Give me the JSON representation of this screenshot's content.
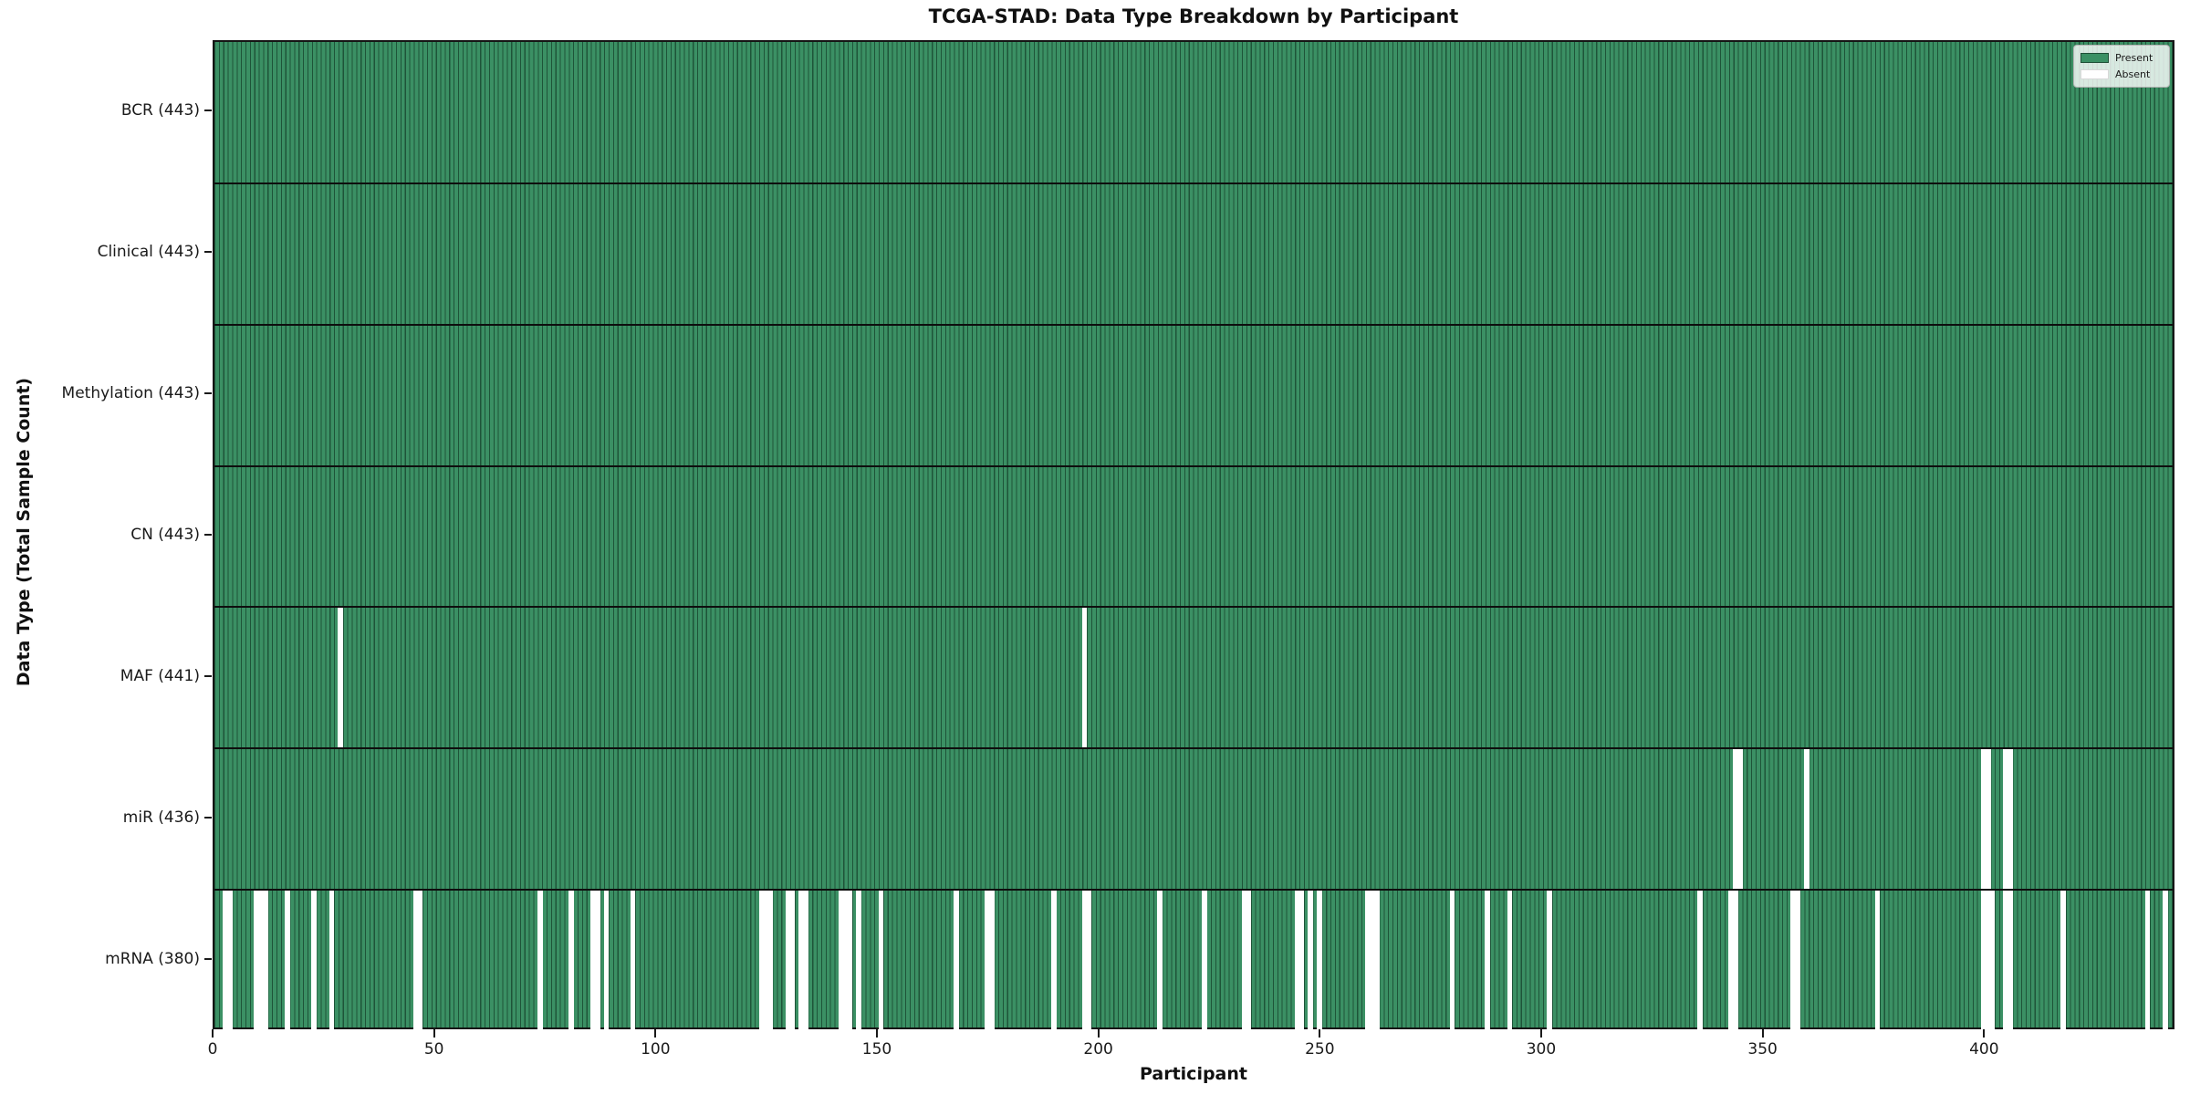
{
  "chart_data": {
    "type": "heatmap",
    "title": "TCGA-STAD: Data Type Breakdown by Participant",
    "xlabel": "Participant",
    "ylabel": "Data Type (Total Sample Count)",
    "n_participants": 443,
    "x_ticks": [
      0,
      50,
      100,
      150,
      200,
      250,
      300,
      350,
      400
    ],
    "xlim": [
      0,
      443
    ],
    "grid": false,
    "legend_position": "upper right",
    "legend": {
      "items": [
        {
          "label": "Present",
          "color": "#3b9064"
        },
        {
          "label": "Absent",
          "color": "#ffffff"
        }
      ]
    },
    "colors": {
      "present": "#3b9064",
      "bar_edge": "#123b27",
      "absent": "#ffffff",
      "spine": "#151515"
    },
    "rows": [
      {
        "label": "BCR (443)",
        "data_type": "BCR",
        "total": 443,
        "absent": []
      },
      {
        "label": "Clinical (443)",
        "data_type": "Clinical",
        "total": 443,
        "absent": []
      },
      {
        "label": "Methylation (443)",
        "data_type": "Methylation",
        "total": 443,
        "absent": []
      },
      {
        "label": "CN (443)",
        "data_type": "CN",
        "total": 443,
        "absent": []
      },
      {
        "label": "MAF (441)",
        "data_type": "MAF",
        "total": 441,
        "absent": [
          28,
          196
        ]
      },
      {
        "label": "miR (436)",
        "data_type": "miR",
        "total": 436,
        "absent": [
          343,
          344,
          359,
          399,
          400,
          404,
          405
        ]
      },
      {
        "label": "mRNA (380)",
        "data_type": "mRNA",
        "total": 380,
        "absent": [
          2,
          3,
          9,
          10,
          11,
          16,
          22,
          26,
          45,
          46,
          73,
          80,
          85,
          86,
          88,
          94,
          123,
          124,
          125,
          129,
          130,
          132,
          133,
          141,
          142,
          143,
          145,
          150,
          167,
          174,
          175,
          189,
          196,
          197,
          213,
          223,
          232,
          233,
          244,
          245,
          247,
          249,
          260,
          261,
          262,
          279,
          287,
          292,
          301,
          335,
          342,
          343,
          356,
          357,
          375,
          399,
          400,
          401,
          404,
          405,
          417,
          436,
          440
        ]
      }
    ]
  }
}
